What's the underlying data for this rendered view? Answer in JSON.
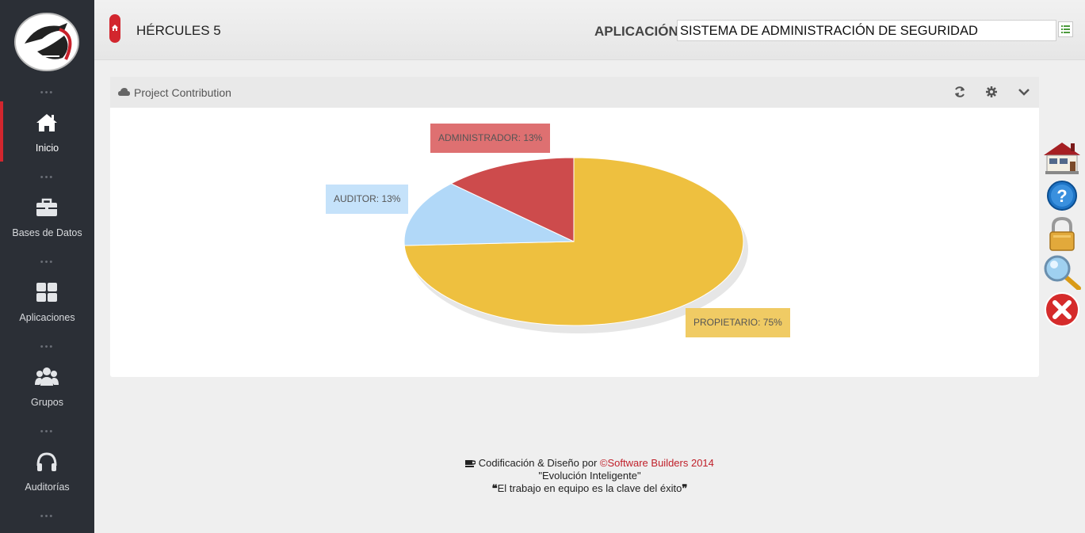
{
  "header": {
    "app_name": "HÉRCULES 5",
    "app_label": "APLICACIÓN:",
    "app_value": "SISTEMA DE ADMINISTRACIÓN DE SEGURIDAD"
  },
  "sidebar": {
    "items": [
      {
        "label": "Inicio",
        "icon": "home-icon"
      },
      {
        "label": "Bases de Datos",
        "icon": "briefcase-icon"
      },
      {
        "label": "Aplicaciones",
        "icon": "grid-icon"
      },
      {
        "label": "Grupos",
        "icon": "users-icon"
      },
      {
        "label": "Auditorías",
        "icon": "headphones-icon"
      }
    ]
  },
  "widget": {
    "title": "Project Contribution"
  },
  "chart_data": {
    "type": "pie",
    "slices": [
      {
        "label": "PROPIETARIO: 75%",
        "name": "PROPIETARIO",
        "value": 75,
        "color": "#eec03f",
        "label_bg": "#f0cb64"
      },
      {
        "label": "AUDITOR: 13%",
        "name": "AUDITOR",
        "value": 13,
        "color": "#b1d8f8",
        "label_bg": "#c5e2fa"
      },
      {
        "label": "ADMINISTRADOR: 13%",
        "name": "ADMINISTRADOR",
        "value": 13,
        "color": "#cd4b4c",
        "label_bg": "#de7071"
      }
    ]
  },
  "footer": {
    "line1_prefix": "Codificación & Diseño por ",
    "line1_brand": "©Software Builders 2014",
    "line2": "\"Evolución Inteligente\"",
    "line3": "El trabajo en equipo es la clave del éxito"
  },
  "colors": {
    "sidebar_bg": "#2b2f36",
    "accent": "#d2262e"
  }
}
